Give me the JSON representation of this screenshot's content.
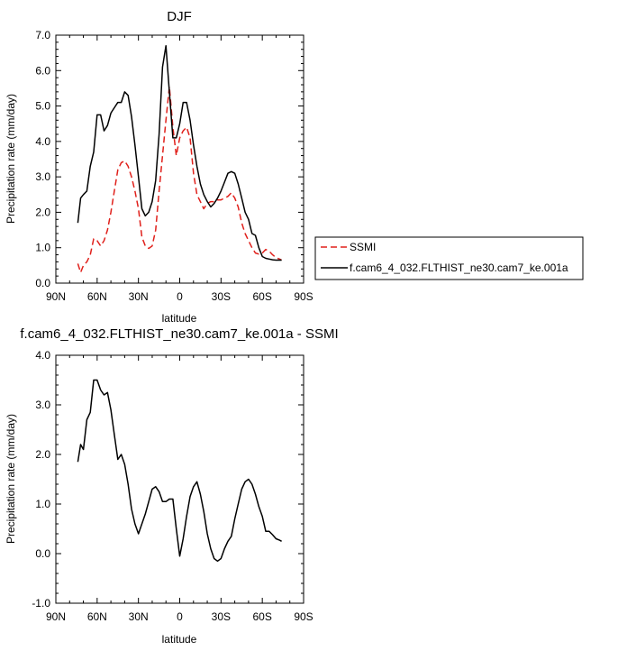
{
  "chart_data": [
    {
      "type": "line",
      "title": "DJF",
      "xlabel": "latitude",
      "ylabel": "Precipitation rate (mm/day)",
      "xlim": [
        90,
        -90
      ],
      "ylim": [
        0.0,
        7.0
      ],
      "x_ticks": [
        "90N",
        "60N",
        "30N",
        "0",
        "30S",
        "60S",
        "90S"
      ],
      "y_ticks": [
        "0.0",
        "1.0",
        "2.0",
        "3.0",
        "4.0",
        "5.0",
        "6.0",
        "7.0"
      ],
      "legend_position": "right",
      "series": [
        {
          "name": "SSMI",
          "color": "#e0201b",
          "dash": "dashed",
          "x": [
            74,
            72,
            70,
            67.5,
            65,
            62.5,
            60,
            57.5,
            55,
            52.5,
            50,
            47.5,
            45,
            42.5,
            40,
            37.5,
            35,
            32.5,
            30,
            27.5,
            25,
            22.5,
            20,
            17.5,
            15,
            12.5,
            10,
            7.5,
            5,
            2.5,
            0,
            -2.5,
            -5,
            -7.5,
            -10,
            -12.5,
            -15,
            -17.5,
            -20,
            -22.5,
            -25,
            -27.5,
            -30,
            -32.5,
            -35,
            -37.5,
            -40,
            -42.5,
            -45,
            -47.5,
            -50,
            -52.5,
            -55,
            -57.5,
            -60,
            -62.5,
            -65,
            -67.5,
            -70,
            -72.5,
            -74
          ],
          "values": [
            0.55,
            0.3,
            0.5,
            0.6,
            0.8,
            1.25,
            1.2,
            1.05,
            1.2,
            1.5,
            2.0,
            2.6,
            3.2,
            3.4,
            3.45,
            3.3,
            3.0,
            2.6,
            2.1,
            1.3,
            1.05,
            0.98,
            1.05,
            1.5,
            2.6,
            3.6,
            4.6,
            5.55,
            4.4,
            3.6,
            4.1,
            4.3,
            4.4,
            4.1,
            3.1,
            2.5,
            2.3,
            2.1,
            2.25,
            2.3,
            2.3,
            2.35,
            2.35,
            2.4,
            2.45,
            2.55,
            2.4,
            2.15,
            1.7,
            1.4,
            1.2,
            1.0,
            0.85,
            0.82,
            0.85,
            0.95,
            0.9,
            0.8,
            0.72,
            0.68,
            0.65
          ]
        },
        {
          "name": "f.cam6_4_032.FLTHIST_ne30.cam7_ke.001a",
          "color": "#000000",
          "dash": "solid",
          "x": [
            74,
            72,
            70,
            67.5,
            65,
            62.5,
            60,
            57.5,
            55,
            52.5,
            50,
            47.5,
            45,
            42.5,
            40,
            37.5,
            35,
            32.5,
            30,
            27.5,
            25,
            22.5,
            20,
            17.5,
            15,
            12.5,
            10,
            7.5,
            5,
            2.5,
            0,
            -2.5,
            -5,
            -7.5,
            -10,
            -12.5,
            -15,
            -17.5,
            -20,
            -22.5,
            -25,
            -27.5,
            -30,
            -32.5,
            -35,
            -37.5,
            -40,
            -42.5,
            -45,
            -47.5,
            -50,
            -52.5,
            -55,
            -57.5,
            -60,
            -62.5,
            -65,
            -67.5,
            -70,
            -72.5,
            -74
          ],
          "values": [
            1.7,
            2.4,
            2.5,
            2.6,
            3.3,
            3.7,
            4.75,
            4.75,
            4.3,
            4.45,
            4.8,
            4.95,
            5.1,
            5.1,
            5.4,
            5.3,
            4.7,
            3.9,
            3.0,
            2.1,
            1.9,
            2.0,
            2.3,
            2.9,
            4.2,
            6.1,
            6.7,
            5.4,
            4.1,
            4.1,
            4.5,
            5.1,
            5.1,
            4.6,
            3.9,
            3.3,
            2.8,
            2.5,
            2.3,
            2.15,
            2.25,
            2.4,
            2.6,
            2.85,
            3.1,
            3.15,
            3.1,
            2.8,
            2.4,
            2.0,
            1.8,
            1.4,
            1.35,
            1.0,
            0.75,
            0.7,
            0.68,
            0.66,
            0.65,
            0.65,
            0.65
          ]
        }
      ]
    },
    {
      "type": "line",
      "title": "f.cam6_4_032.FLTHIST_ne30.cam7_ke.001a - SSMI",
      "xlabel": "latitude",
      "ylabel": "Precipitation rate (mm/day)",
      "xlim": [
        90,
        -90
      ],
      "ylim": [
        -1.0,
        4.0
      ],
      "x_ticks": [
        "90N",
        "60N",
        "30N",
        "0",
        "30S",
        "60S",
        "90S"
      ],
      "y_ticks": [
        "-1.0",
        "0.0",
        "1.0",
        "2.0",
        "3.0",
        "4.0"
      ],
      "series": [
        {
          "color": "#000000",
          "dash": "solid",
          "x": [
            74,
            72,
            70,
            67.5,
            65,
            62.5,
            60,
            57.5,
            55,
            52.5,
            50,
            47.5,
            45,
            42.5,
            40,
            37.5,
            35,
            32.5,
            30,
            27.5,
            25,
            22.5,
            20,
            17.5,
            15,
            12.5,
            10,
            7.5,
            5,
            2.5,
            0,
            -2.5,
            -5,
            -7.5,
            -10,
            -12.5,
            -15,
            -17.5,
            -20,
            -22.5,
            -25,
            -27.5,
            -30,
            -32.5,
            -35,
            -37.5,
            -40,
            -42.5,
            -45,
            -47.5,
            -50,
            -52.5,
            -55,
            -57.5,
            -60,
            -62.5,
            -65,
            -67.5,
            -70,
            -72.5,
            -74
          ],
          "values": [
            1.85,
            2.2,
            2.1,
            2.7,
            2.85,
            3.5,
            3.5,
            3.3,
            3.2,
            3.25,
            2.9,
            2.4,
            1.9,
            2.0,
            1.8,
            1.4,
            0.9,
            0.6,
            0.4,
            0.6,
            0.8,
            1.05,
            1.3,
            1.35,
            1.25,
            1.05,
            1.05,
            1.1,
            1.1,
            0.5,
            -0.05,
            0.3,
            0.75,
            1.15,
            1.35,
            1.45,
            1.2,
            0.85,
            0.4,
            0.1,
            -0.1,
            -0.15,
            -0.1,
            0.1,
            0.25,
            0.35,
            0.7,
            1.0,
            1.3,
            1.45,
            1.5,
            1.4,
            1.2,
            0.95,
            0.75,
            0.45,
            0.45,
            0.38,
            0.3,
            0.27,
            0.25
          ]
        }
      ]
    }
  ]
}
